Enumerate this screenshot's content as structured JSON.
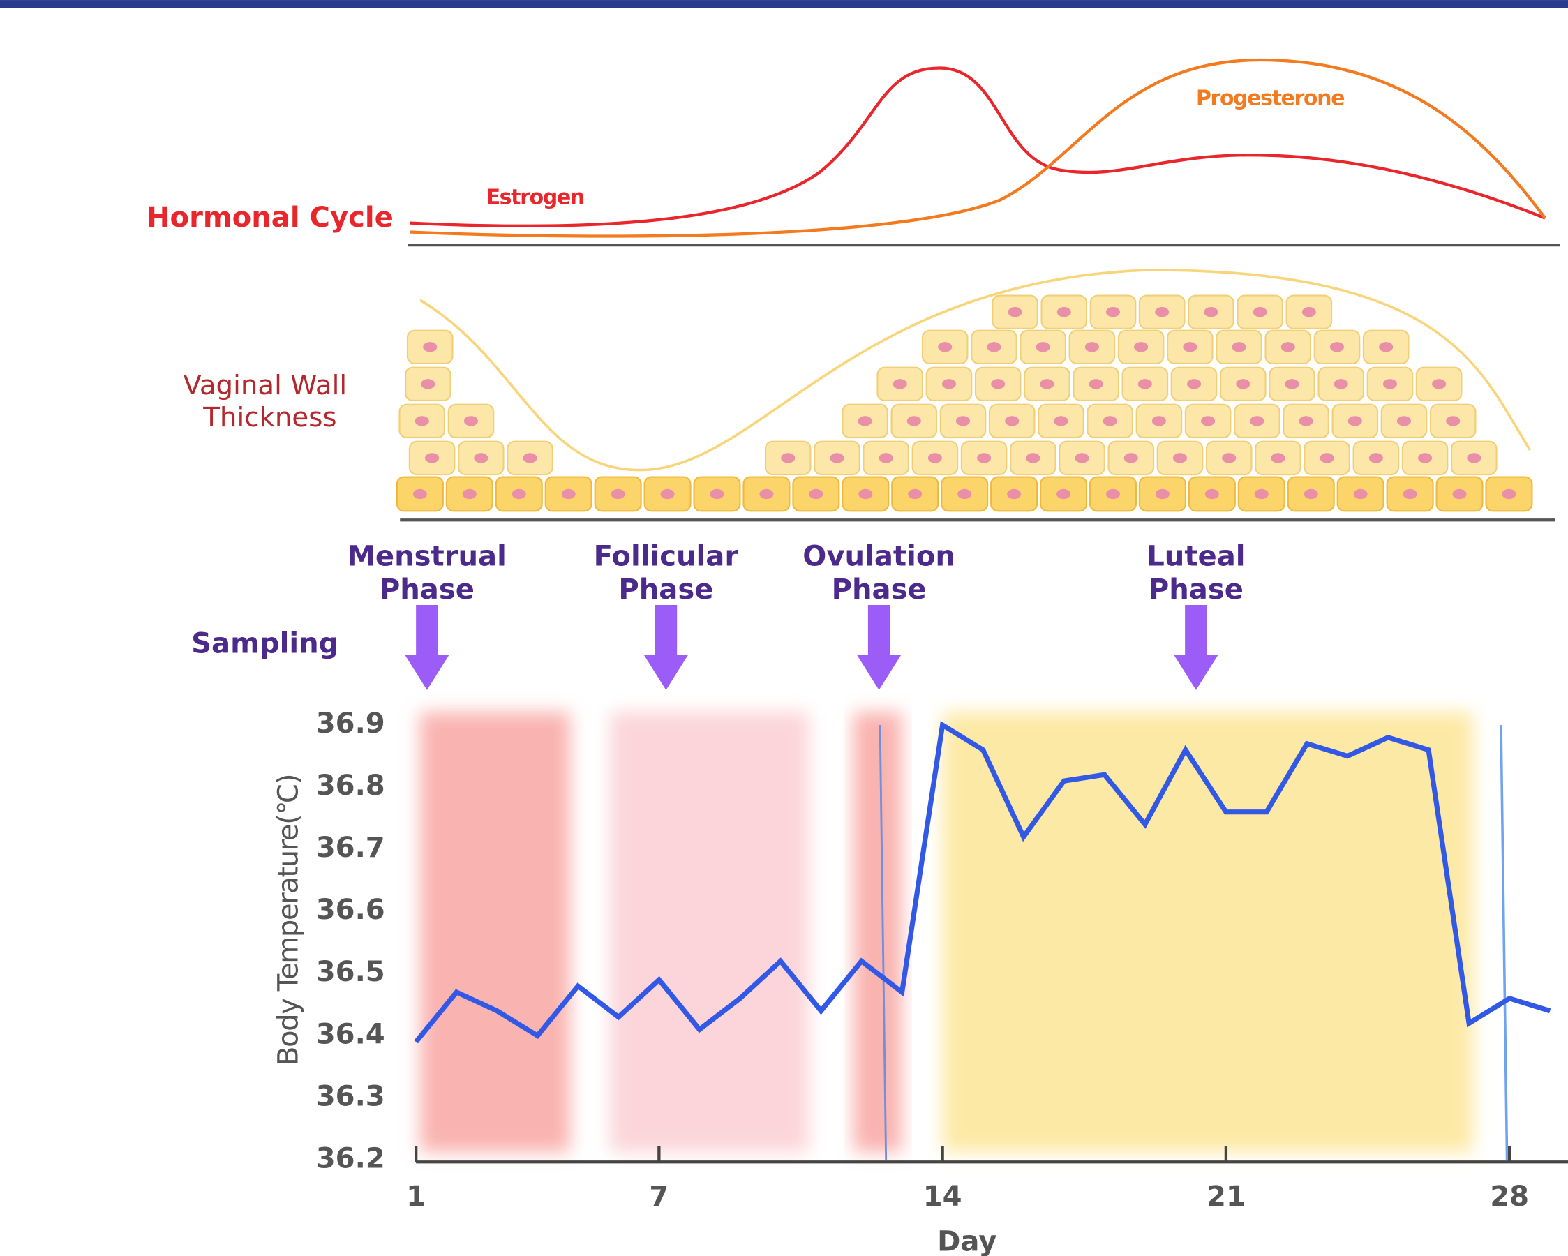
{
  "chart_data": {
    "type": "line",
    "hormonal_cycle": {
      "label": "Hormonal Cycle",
      "estrogen": "Estrogen",
      "progesterone": "Progesterone"
    },
    "vaginal_wall": {
      "label": [
        "Vaginal Wall",
        "Thickness"
      ]
    },
    "sampling_label": "Sampling",
    "phases": [
      {
        "name": [
          "Menstrual",
          "Phase"
        ],
        "span": [
          1.1,
          4.8
        ],
        "color": "#f9b3b0"
      },
      {
        "name": [
          "Follicular",
          "Phase"
        ],
        "span": [
          5.8,
          10.7
        ],
        "color": "#fbd5d9"
      },
      {
        "name": [
          "Ovulation",
          "Phase"
        ],
        "span": [
          11.8,
          13.0
        ],
        "color": "#f9b3b0"
      },
      {
        "name": [
          "Luteal",
          "Phase"
        ],
        "span": [
          14.0,
          27.1
        ],
        "color": "#fde9a6"
      }
    ],
    "y_label": "Body Temperature(℃)",
    "x_label": "Day",
    "x": [
      1,
      2,
      3,
      4,
      5,
      6,
      7,
      8,
      9,
      10,
      11,
      12,
      13,
      14,
      15,
      16,
      17,
      18,
      19,
      20,
      21,
      22,
      23,
      24,
      25,
      26,
      27,
      28,
      29
    ],
    "series": [
      {
        "color": "#3259e6",
        "values": [
          36.39,
          36.47,
          36.44,
          36.4,
          36.48,
          36.43,
          36.49,
          36.41,
          36.46,
          36.52,
          36.44,
          36.52,
          36.47,
          36.9,
          36.86,
          36.72,
          36.81,
          36.82,
          36.74,
          36.86,
          36.76,
          36.76,
          36.87,
          36.85,
          36.88,
          36.86,
          36.42,
          36.46,
          36.44
        ]
      }
    ],
    "xlim": [
      1,
      29
    ],
    "xticks": [
      1,
      7,
      14,
      21,
      28
    ],
    "ylim": [
      36.2,
      36.9
    ],
    "yticks": [
      36.2,
      36.3,
      36.4,
      36.5,
      36.6,
      36.7,
      36.8,
      36.9
    ]
  }
}
